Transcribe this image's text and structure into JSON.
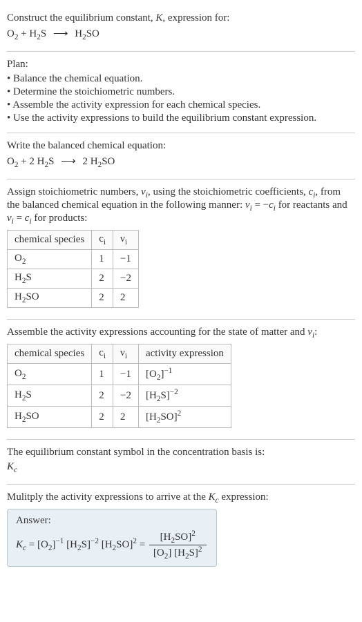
{
  "intro": {
    "line1": "Construct the equilibrium constant, ",
    "Ksym": "K",
    "line1b": ", expression for:",
    "equation_html": "O<sub>2</sub> + H<sub>2</sub>S <span class='arrow'>⟶</span> H<sub>2</sub>SO"
  },
  "plan": {
    "title": "Plan:",
    "items": [
      "Balance the chemical equation.",
      "Determine the stoichiometric numbers.",
      "Assemble the activity expression for each chemical species.",
      "Use the activity expressions to build the equilibrium constant expression."
    ]
  },
  "balanced": {
    "title": "Write the balanced chemical equation:",
    "equation_html": "O<sub>2</sub> + 2 H<sub>2</sub>S <span class='arrow'>⟶</span> 2 H<sub>2</sub>SO"
  },
  "stoich": {
    "text_html": "Assign stoichiometric numbers, <span class='ital'>ν<sub>i</sub></span>, using the stoichiometric coefficients, <span class='ital'>c<sub>i</sub></span>, from the balanced chemical equation in the following manner: <span class='ital'>ν<sub>i</sub></span> = −<span class='ital'>c<sub>i</sub></span> for reactants and <span class='ital'>ν<sub>i</sub></span> = <span class='ital'>c<sub>i</sub></span> for products:",
    "headers": [
      "chemical species",
      "c<sub>i</sub>",
      "ν<sub>i</sub>"
    ],
    "rows": [
      [
        "O<sub>2</sub>",
        "1",
        "−1"
      ],
      [
        "H<sub>2</sub>S",
        "2",
        "−2"
      ],
      [
        "H<sub>2</sub>SO",
        "2",
        "2"
      ]
    ]
  },
  "activity": {
    "text_html": "Assemble the activity expressions accounting for the state of matter and <span class='ital'>ν<sub>i</sub></span>:",
    "headers": [
      "chemical species",
      "c<sub>i</sub>",
      "ν<sub>i</sub>",
      "activity expression"
    ],
    "rows": [
      [
        "O<sub>2</sub>",
        "1",
        "−1",
        "[O<sub>2</sub>]<sup>−1</sup>"
      ],
      [
        "H<sub>2</sub>S",
        "2",
        "−2",
        "[H<sub>2</sub>S]<sup>−2</sup>"
      ],
      [
        "H<sub>2</sub>SO",
        "2",
        "2",
        "[H<sub>2</sub>SO]<sup>2</sup>"
      ]
    ]
  },
  "kcSymbol": {
    "text": "The equilibrium constant symbol in the concentration basis is:",
    "sym_html": "<span class='ital'>K<sub>c</sub></span>"
  },
  "multiply": {
    "text_html": "Mulitply the activity expressions to arrive at the <span class='ital'>K<sub>c</sub></span> expression:"
  },
  "answer": {
    "label": "Answer:",
    "lhs_html": "<span class='ital'>K<sub>c</sub></span> = [O<sub>2</sub>]<sup>−1</sup> [H<sub>2</sub>S]<sup>−2</sup> [H<sub>2</sub>SO]<sup>2</sup> = ",
    "frac_num_html": "[H<sub>2</sub>SO]<sup>2</sup>",
    "frac_den_html": "[O<sub>2</sub>] [H<sub>2</sub>S]<sup>2</sup>"
  },
  "style": {
    "bg": "#ffffff",
    "text": "#333333",
    "border": "#cccccc",
    "table_border": "#bbbbbb",
    "answer_bg": "#e8f0f5",
    "answer_border": "#b8c8d4",
    "base_fontsize": 15
  }
}
